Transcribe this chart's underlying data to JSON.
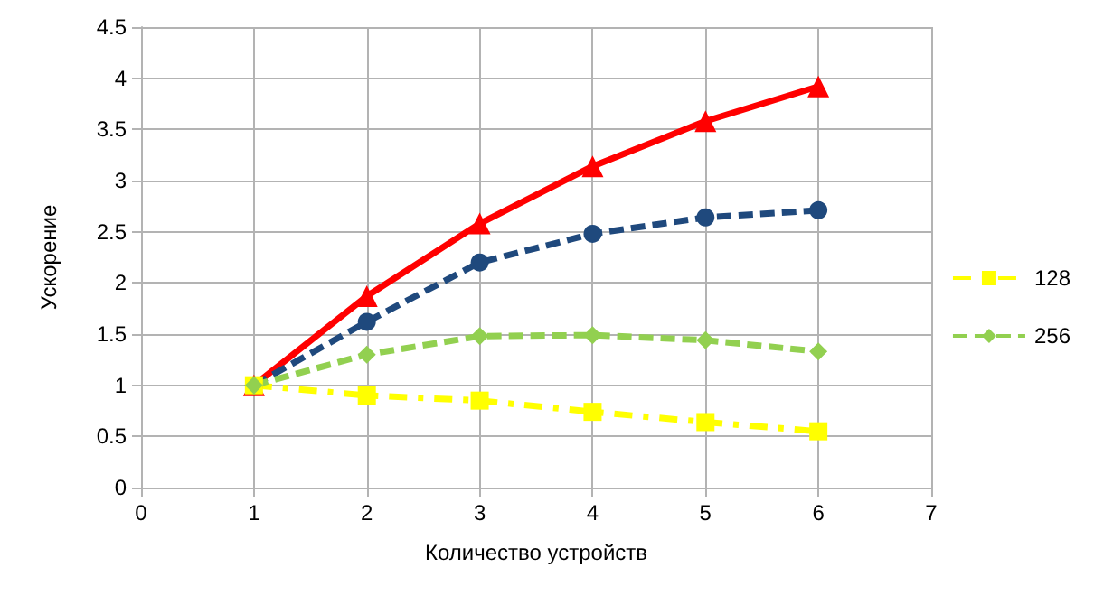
{
  "chart_data": {
    "type": "line",
    "xlabel": "Количество устройств",
    "ylabel": "Ускорение",
    "x": [
      1,
      2,
      3,
      4,
      5,
      6
    ],
    "series": [
      {
        "color": "#ff0000",
        "marker": "triangle",
        "line_style": "solid",
        "values": [
          1,
          1.87,
          2.58,
          3.14,
          3.58,
          3.92
        ]
      },
      {
        "color": "#1f497d",
        "marker": "circle",
        "line_style": "dashed",
        "values": [
          1,
          1.62,
          2.2,
          2.48,
          2.64,
          2.71
        ]
      },
      {
        "name": "128",
        "color": "#ffff00",
        "marker": "square",
        "line_style": "dotted",
        "values": [
          1,
          0.9,
          0.85,
          0.74,
          0.64,
          0.55
        ]
      },
      {
        "name": "256",
        "color": "#92d050",
        "marker": "diamond",
        "line_style": "dashed",
        "values": [
          1,
          1.3,
          1.48,
          1.49,
          1.44,
          1.33
        ]
      }
    ],
    "xlim": [
      0,
      7
    ],
    "xticks": [
      0,
      1,
      2,
      3,
      4,
      5,
      6,
      7
    ],
    "ylim": [
      0,
      4.5
    ],
    "yticks": [
      0,
      0.5,
      1,
      1.5,
      2,
      2.5,
      3,
      3.5,
      4,
      4.5
    ],
    "grid": true,
    "legend": "right"
  }
}
